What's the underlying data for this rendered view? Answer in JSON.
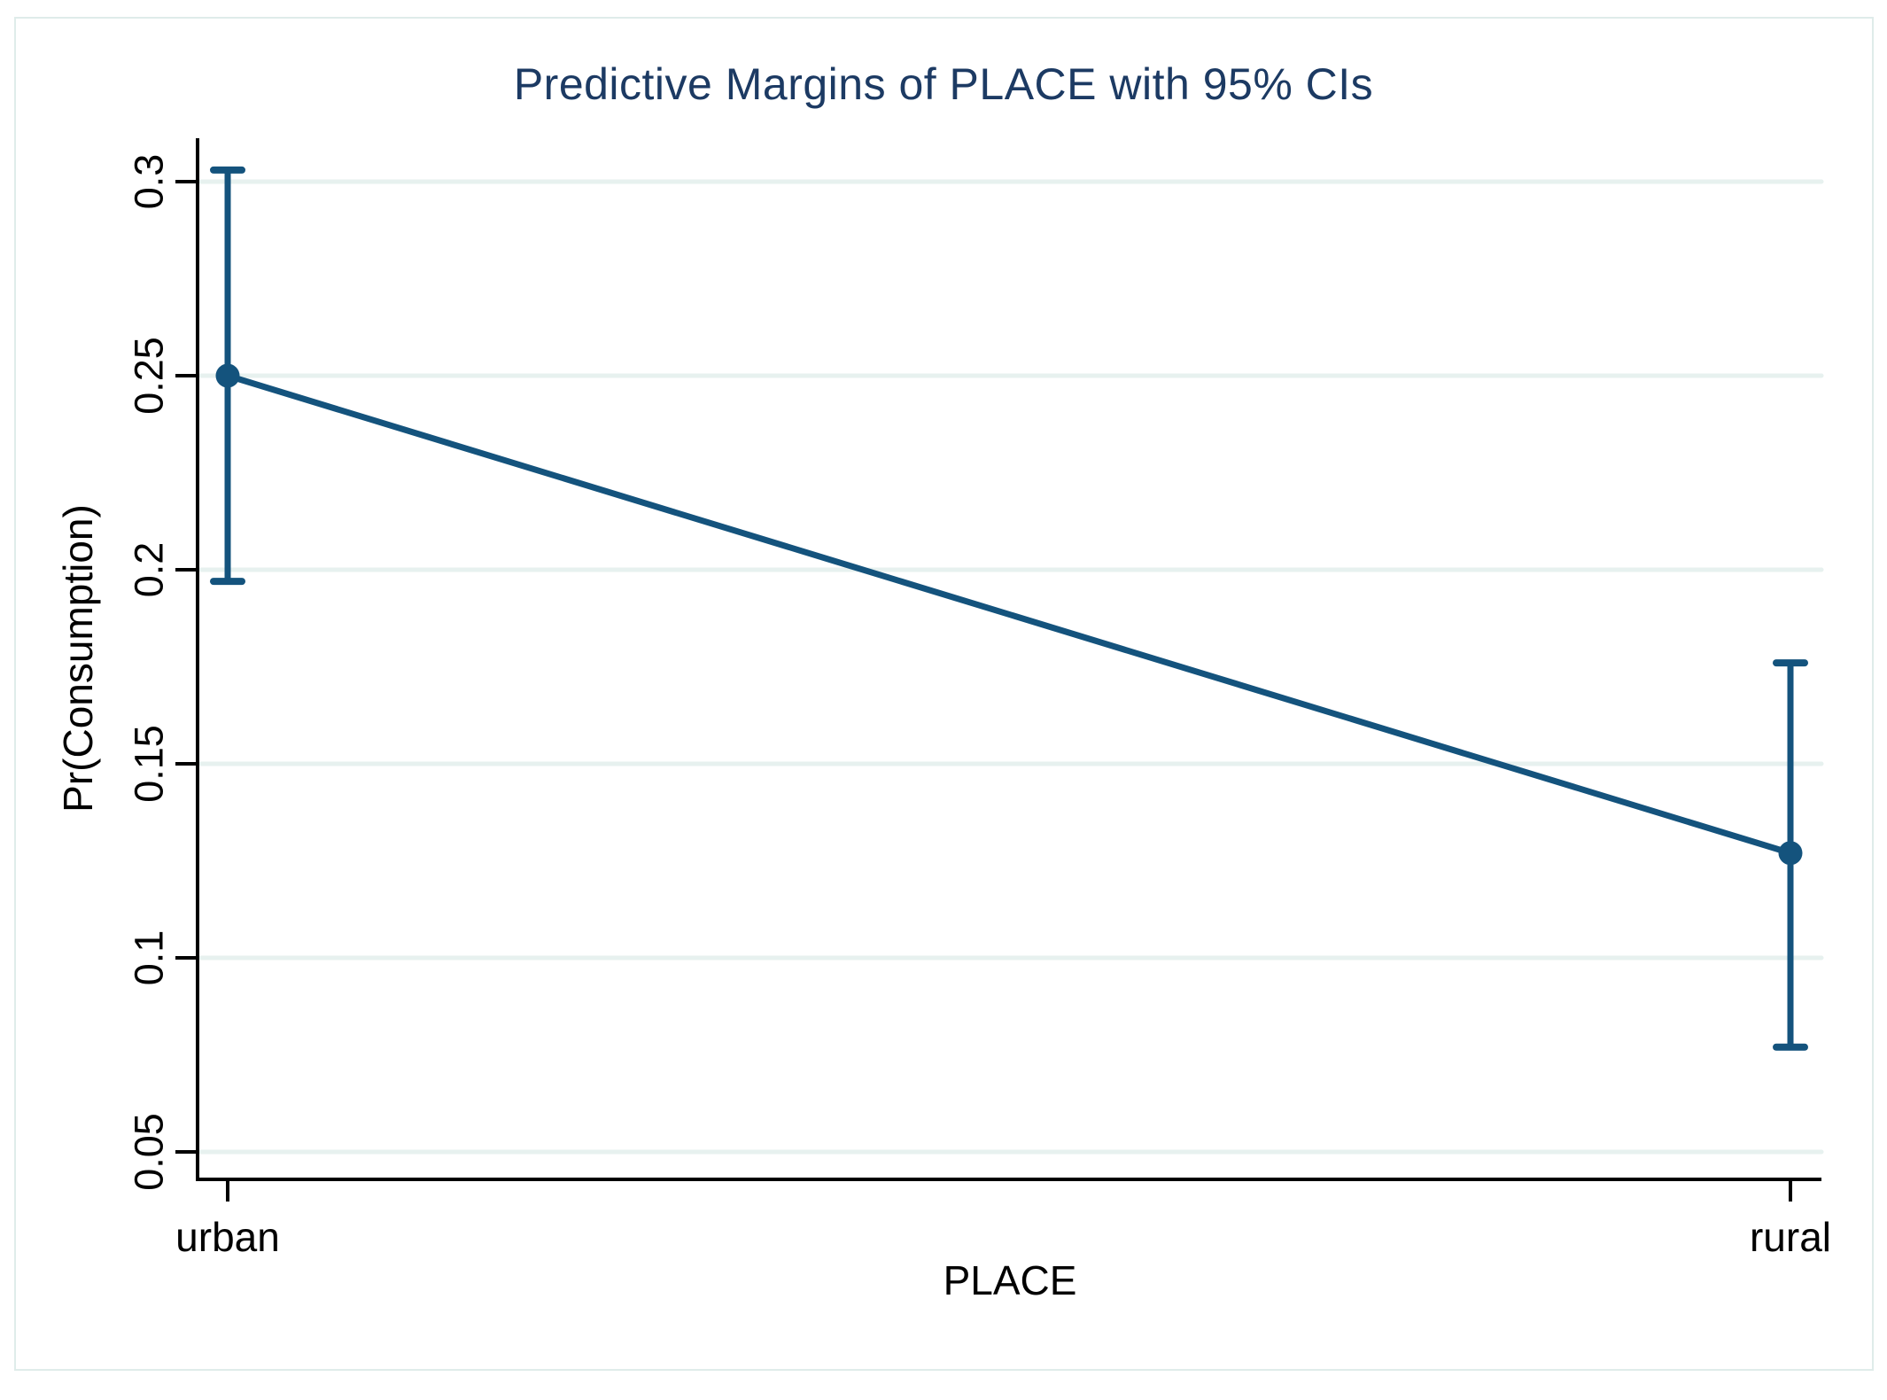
{
  "chart_data": {
    "type": "line",
    "title": "Predictive Margins of PLACE with 95% CIs",
    "xlabel": "PLACE",
    "ylabel": "Pr(Consumption)",
    "categories": [
      "urban",
      "rural"
    ],
    "series": [
      {
        "name": "Predictive margins",
        "values": [
          0.25,
          0.127
        ],
        "ci_low": [
          0.197,
          0.077
        ],
        "ci_high": [
          0.303,
          0.176
        ]
      }
    ],
    "yticks": [
      0.05,
      0.1,
      0.15,
      0.2,
      0.25,
      0.3
    ],
    "ytick_labels": [
      "0.05",
      "0.1",
      "0.15",
      "0.2",
      "0.25",
      "0.3"
    ],
    "ylim": [
      0.043,
      0.311
    ],
    "grid": true,
    "legend_position": "none",
    "colors": {
      "series": "#14537d",
      "title": "#1c3a63",
      "grid": "#e7f1ef",
      "axis": "#000000",
      "frame": "#dfecea",
      "background": "#ffffff"
    }
  }
}
